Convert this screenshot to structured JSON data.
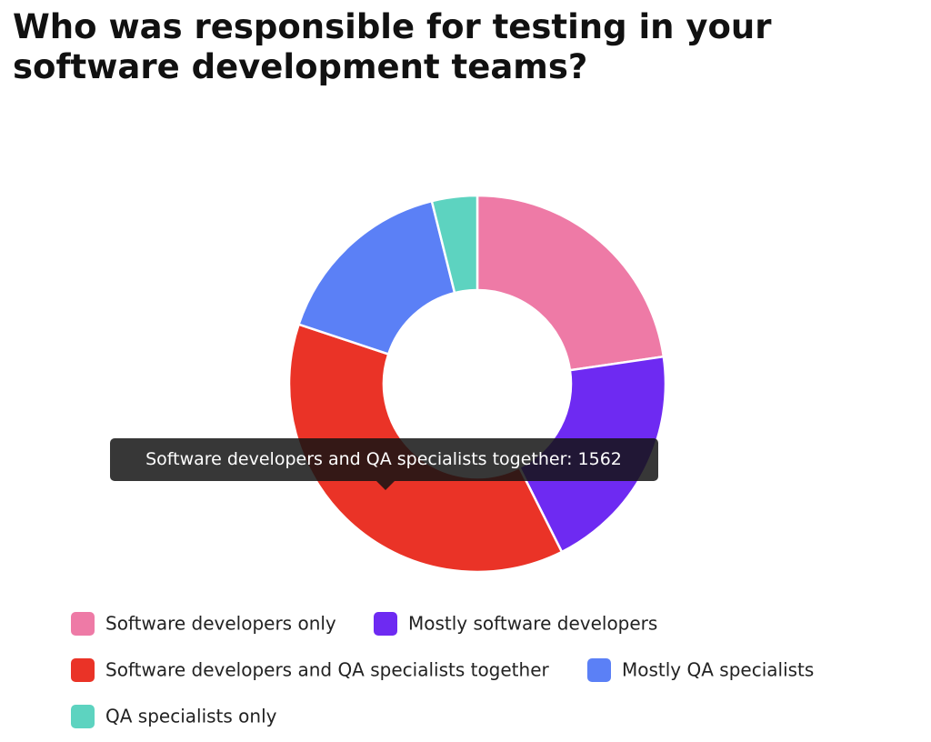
{
  "chart_data": {
    "type": "donut",
    "title": "Who was responsible for testing in your software development teams?",
    "categories": [
      "Software developers only",
      "Mostly software developers",
      "Software developers and QA specialists together",
      "Mostly QA specialists",
      "QA specialists only"
    ],
    "values": [
      945,
      828,
      1562,
      666,
      162
    ],
    "colors": [
      "#ee7aa6",
      "#6e2af2",
      "#ea3327",
      "#5b80f6",
      "#5dd3c0"
    ],
    "tooltip_index": 2
  }
}
